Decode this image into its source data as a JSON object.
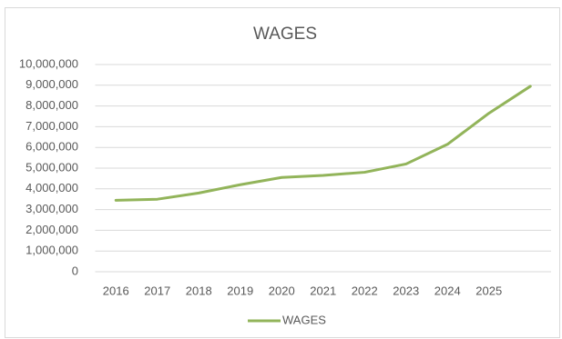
{
  "chart_data": {
    "type": "line",
    "title": "WAGES",
    "categories": [
      "2016",
      "2017",
      "2018",
      "2019",
      "2020",
      "2021",
      "2022",
      "2023",
      "2024",
      "2025",
      null
    ],
    "series": [
      {
        "name": "WAGES",
        "color": "#92b45a",
        "values": [
          3450000,
          3500000,
          3800000,
          4200000,
          4550000,
          4650000,
          4800000,
          5200000,
          6150000,
          7650000,
          8950000
        ]
      }
    ],
    "ylim": [
      0,
      10000000
    ],
    "yticks": [
      0,
      {
        "value": 1000000,
        "label": "1,000,000"
      },
      {
        "value": 2000000,
        "label": "2,000,000"
      },
      {
        "value": 3000000,
        "label": "3,000,000"
      },
      {
        "value": 4000000,
        "label": "4,000,000"
      },
      {
        "value": 5000000,
        "label": "5,000,000"
      },
      {
        "value": 6000000,
        "label": "6,000,000"
      },
      {
        "value": 7000000,
        "label": "7,000,000"
      },
      {
        "value": 8000000,
        "label": "8,000,000"
      },
      {
        "value": 9000000,
        "label": "9,000,000"
      },
      {
        "value": 10000000,
        "label": "10,000,000"
      }
    ],
    "grid": true,
    "legend": "bottom"
  }
}
